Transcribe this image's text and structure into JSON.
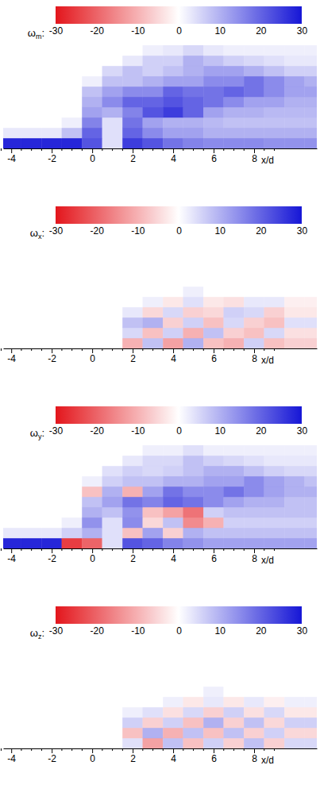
{
  "chart_data": [
    {
      "type": "heatmap",
      "title": "ωm:",
      "x_label": "x/d",
      "xlim": [
        -4.4,
        11.1
      ],
      "xticks": [
        -4,
        -2,
        0,
        2,
        4,
        6,
        8
      ],
      "minor_xticks": [
        -4.5,
        -3.5,
        -3,
        -2.5,
        -1.5,
        -1,
        -0.5,
        0.5,
        1,
        1.5,
        2.5,
        3,
        3.5,
        4.5,
        5,
        5.5,
        6.5,
        7,
        7.5,
        8.5,
        9
      ],
      "ylim": [
        0,
        5
      ],
      "tick_labels": "x",
      "colorbar": {
        "range": [
          -30,
          30
        ],
        "ticks": [
          -30,
          -20,
          -10,
          0,
          10,
          20,
          30
        ]
      },
      "x_edges": [
        -4.5,
        -3.5,
        -2.5,
        -1.5,
        -0.5,
        0.5,
        1.5,
        2.5,
        3.5,
        4.5,
        5.5,
        6.5,
        7.5,
        8.5,
        9.5,
        10.5,
        11.5
      ],
      "y_edges": [
        0,
        0.5,
        1,
        1.5,
        2,
        2.5,
        3,
        3.5,
        4,
        4.5,
        5
      ],
      "cells": [
        [
          28,
          28,
          28,
          28,
          22,
          4,
          25,
          22,
          18,
          16,
          15,
          15,
          15,
          14,
          14,
          14
        ],
        [
          3,
          3,
          3,
          8,
          20,
          4,
          20,
          15,
          12,
          12,
          10,
          10,
          10,
          10,
          10,
          10
        ],
        [
          0,
          0,
          0,
          2,
          16,
          4,
          18,
          12,
          10,
          10,
          9,
          8,
          8,
          8,
          8,
          8
        ],
        [
          0,
          0,
          0,
          0,
          12,
          10,
          16,
          22,
          25,
          20,
          12,
          10,
          10,
          9,
          9,
          9
        ],
        [
          0,
          0,
          0,
          0,
          10,
          15,
          20,
          20,
          22,
          20,
          18,
          15,
          12,
          12,
          10,
          10
        ],
        [
          0,
          0,
          0,
          0,
          8,
          12,
          15,
          15,
          20,
          18,
          18,
          20,
          18,
          15,
          12,
          12
        ],
        [
          0,
          0,
          0,
          0,
          2,
          8,
          8,
          10,
          12,
          12,
          15,
          15,
          18,
          15,
          12,
          10
        ],
        [
          0,
          0,
          0,
          0,
          0,
          5,
          8,
          6,
          8,
          10,
          12,
          12,
          10,
          8,
          6,
          6
        ],
        [
          0,
          0,
          0,
          0,
          0,
          0,
          3,
          6,
          6,
          10,
          8,
          6,
          5,
          4,
          3,
          3
        ],
        [
          0,
          0,
          0,
          0,
          0,
          0,
          0,
          2,
          3,
          5,
          3,
          2,
          2,
          2,
          2,
          2
        ]
      ]
    },
    {
      "type": "heatmap",
      "title": "ωx:",
      "x_label": "x/d",
      "xlim": [
        -4.4,
        11.1
      ],
      "xticks": [
        -4,
        -2,
        0,
        2,
        4,
        6,
        8
      ],
      "minor_xticks": [
        -4.5,
        -3.5,
        -3,
        -2.5,
        -1.5,
        -1,
        -0.5,
        0.5,
        1,
        1.5,
        2.5,
        3,
        3.5,
        4.5,
        5,
        5.5,
        6.5,
        7,
        7.5,
        8.5,
        9
      ],
      "ylim": [
        0,
        5
      ],
      "tick_labels": "x",
      "colorbar": {
        "range": [
          -30,
          30
        ],
        "ticks": [
          -30,
          -20,
          -10,
          0,
          10,
          20,
          30
        ]
      },
      "x_edges": [
        -4.5,
        -3.5,
        -2.5,
        -1.5,
        -0.5,
        0.5,
        1.5,
        2.5,
        3.5,
        4.5,
        5.5,
        6.5,
        7.5,
        8.5,
        9.5,
        10.5,
        11.5
      ],
      "y_edges": [
        0,
        0.5,
        1,
        1.5,
        2,
        2.5,
        3,
        3.5,
        4,
        4.5,
        5
      ],
      "cells": [
        [
          0,
          0,
          0,
          0,
          0,
          0,
          -10,
          8,
          -12,
          10,
          -8,
          -10,
          6,
          -8,
          -6,
          -6
        ],
        [
          0,
          0,
          0,
          0,
          0,
          0,
          5,
          -8,
          6,
          -10,
          8,
          -6,
          -8,
          5,
          -4,
          -4
        ],
        [
          0,
          0,
          0,
          0,
          0,
          0,
          8,
          10,
          -6,
          6,
          -8,
          5,
          -6,
          -8,
          4,
          4
        ],
        [
          0,
          0,
          0,
          0,
          0,
          0,
          3,
          -5,
          5,
          -6,
          -5,
          6,
          5,
          -6,
          -3,
          -3
        ],
        [
          0,
          0,
          0,
          0,
          0,
          0,
          0,
          2,
          -3,
          4,
          -3,
          -4,
          3,
          3,
          -2,
          -2
        ],
        [
          0,
          0,
          0,
          0,
          0,
          0,
          0,
          0,
          0,
          2,
          0,
          0,
          0,
          0,
          0,
          0
        ],
        [
          0,
          0,
          0,
          0,
          0,
          0,
          0,
          0,
          0,
          0,
          0,
          0,
          0,
          0,
          0,
          0
        ],
        [
          0,
          0,
          0,
          0,
          0,
          0,
          0,
          0,
          0,
          0,
          0,
          0,
          0,
          0,
          0,
          0
        ],
        [
          0,
          0,
          0,
          0,
          0,
          0,
          0,
          0,
          0,
          0,
          0,
          0,
          0,
          0,
          0,
          0
        ],
        [
          0,
          0,
          0,
          0,
          0,
          0,
          0,
          0,
          0,
          0,
          0,
          0,
          0,
          0,
          0,
          0
        ]
      ]
    },
    {
      "type": "heatmap",
      "title": "ωy:",
      "x_label": "x/d",
      "xlim": [
        -4.4,
        11.1
      ],
      "xticks": [
        -4,
        -2,
        0,
        2,
        4,
        6,
        8
      ],
      "minor_xticks": [
        -4.5,
        -3.5,
        -3,
        -2.5,
        -1.5,
        -1,
        -0.5,
        0.5,
        1,
        1.5,
        2.5,
        3,
        3.5,
        4.5,
        5,
        5.5,
        6.5,
        7,
        7.5,
        8.5,
        9
      ],
      "ylim": [
        0,
        5
      ],
      "tick_labels": "x",
      "colorbar": {
        "range": [
          -30,
          30
        ],
        "ticks": [
          -30,
          -20,
          -10,
          0,
          10,
          20,
          30
        ]
      },
      "x_edges": [
        -4.5,
        -3.5,
        -2.5,
        -1.5,
        -0.5,
        0.5,
        1.5,
        2.5,
        3.5,
        4.5,
        5.5,
        6.5,
        7.5,
        8.5,
        9.5,
        10.5,
        11.5
      ],
      "y_edges": [
        0,
        0.5,
        1,
        1.5,
        2,
        2.5,
        3,
        3.5,
        4,
        4.5,
        5
      ],
      "cells": [
        [
          28,
          28,
          28,
          -25,
          -20,
          4,
          22,
          20,
          16,
          14,
          12,
          12,
          12,
          12,
          12,
          12
        ],
        [
          3,
          3,
          3,
          6,
          10,
          4,
          -8,
          12,
          -6,
          10,
          8,
          8,
          8,
          8,
          8,
          8
        ],
        [
          0,
          0,
          0,
          2,
          14,
          4,
          15,
          -5,
          8,
          -15,
          -10,
          6,
          6,
          6,
          6,
          6
        ],
        [
          0,
          0,
          0,
          0,
          10,
          8,
          14,
          -8,
          -12,
          -18,
          6,
          8,
          8,
          8,
          8,
          8
        ],
        [
          0,
          0,
          0,
          0,
          8,
          12,
          18,
          16,
          20,
          18,
          15,
          12,
          10,
          10,
          8,
          8
        ],
        [
          0,
          0,
          0,
          0,
          -8,
          10,
          -10,
          12,
          18,
          15,
          15,
          18,
          15,
          12,
          10,
          10
        ],
        [
          0,
          0,
          0,
          0,
          2,
          6,
          8,
          8,
          10,
          10,
          12,
          12,
          15,
          12,
          10,
          8
        ],
        [
          0,
          0,
          0,
          0,
          0,
          4,
          6,
          5,
          6,
          8,
          10,
          10,
          8,
          6,
          5,
          5
        ],
        [
          0,
          0,
          0,
          0,
          0,
          0,
          3,
          5,
          5,
          8,
          6,
          5,
          4,
          3,
          3,
          3
        ],
        [
          0,
          0,
          0,
          0,
          0,
          0,
          0,
          2,
          2,
          4,
          2,
          2,
          2,
          2,
          2,
          2
        ]
      ]
    },
    {
      "type": "heatmap",
      "title": "ωz:",
      "x_label": "x/d",
      "xlim": [
        -4.4,
        11.1
      ],
      "xticks": [
        -4,
        -2,
        0,
        2,
        4,
        6,
        8
      ],
      "minor_xticks": [
        -4.5,
        -3.5,
        -3,
        -2.5,
        -1.5,
        -1,
        -0.5,
        0.5,
        1,
        1.5,
        2.5,
        3,
        3.5,
        4.5,
        5,
        5.5,
        6.5,
        7,
        7.5,
        8.5,
        9
      ],
      "ylim": [
        0,
        5
      ],
      "tick_labels": "x",
      "colorbar": {
        "range": [
          -30,
          30
        ],
        "ticks": [
          -30,
          -20,
          -10,
          0,
          10,
          20,
          30
        ]
      },
      "x_edges": [
        -4.5,
        -3.5,
        -2.5,
        -1.5,
        -0.5,
        0.5,
        1.5,
        2.5,
        3.5,
        4.5,
        5.5,
        6.5,
        7.5,
        8.5,
        9.5,
        10.5,
        11.5
      ],
      "y_edges": [
        0,
        0.5,
        1,
        1.5,
        2,
        2.5,
        3,
        3.5,
        4,
        4.5,
        5
      ],
      "cells": [
        [
          0,
          0,
          0,
          0,
          0,
          0,
          4,
          -12,
          8,
          -8,
          6,
          -6,
          8,
          -6,
          5,
          5
        ],
        [
          0,
          0,
          0,
          0,
          0,
          0,
          -8,
          10,
          -10,
          8,
          -8,
          8,
          -6,
          6,
          -5,
          -5
        ],
        [
          0,
          0,
          0,
          0,
          0,
          0,
          6,
          -6,
          6,
          -8,
          10,
          -6,
          8,
          -5,
          6,
          6
        ],
        [
          0,
          0,
          0,
          0,
          0,
          0,
          2,
          4,
          -4,
          5,
          -6,
          6,
          -4,
          5,
          -3,
          -3
        ],
        [
          0,
          0,
          0,
          0,
          0,
          0,
          0,
          0,
          2,
          -3,
          3,
          -3,
          3,
          -2,
          2,
          2
        ],
        [
          0,
          0,
          0,
          0,
          0,
          0,
          0,
          0,
          0,
          0,
          2,
          0,
          0,
          0,
          0,
          0
        ],
        [
          0,
          0,
          0,
          0,
          0,
          0,
          0,
          0,
          0,
          0,
          0,
          0,
          0,
          0,
          0,
          0
        ],
        [
          0,
          0,
          0,
          0,
          0,
          0,
          0,
          0,
          0,
          0,
          0,
          0,
          0,
          0,
          0,
          0
        ],
        [
          0,
          0,
          0,
          0,
          0,
          0,
          0,
          0,
          0,
          0,
          0,
          0,
          0,
          0,
          0,
          0
        ],
        [
          0,
          0,
          0,
          0,
          0,
          0,
          0,
          0,
          0,
          0,
          0,
          0,
          0,
          0,
          0,
          0
        ]
      ]
    }
  ]
}
